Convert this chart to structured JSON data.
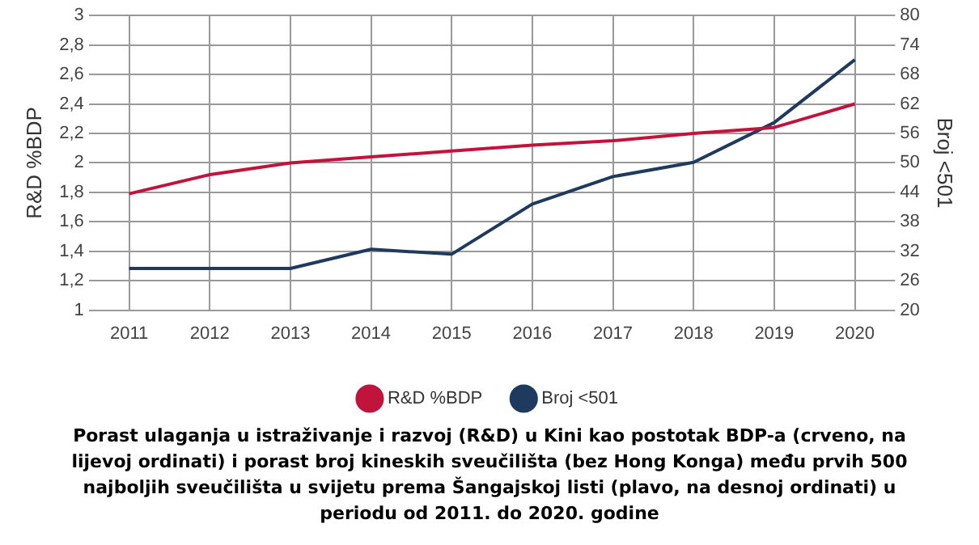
{
  "chart_data": {
    "type": "line",
    "categories": [
      "2011",
      "2012",
      "2013",
      "2014",
      "2015",
      "2016",
      "2017",
      "2018",
      "2019",
      "2020"
    ],
    "series": [
      {
        "name": "R&D %BDP",
        "color": "#c0143c",
        "values": [
          1.79,
          1.92,
          2.0,
          2.04,
          2.08,
          2.12,
          2.15,
          2.2,
          2.24,
          2.4
        ]
      },
      {
        "name": "Broj <501",
        "color": "#1f3a5f",
        "axis": "y2",
        "values": [
          28.5,
          28.5,
          28.5,
          32.4,
          31.4,
          41.6,
          47.2,
          50.1,
          58.2,
          71
        ]
      }
    ],
    "ylabel": "R&D %BDP",
    "y2label": "Broj <501",
    "ylim": [
      1,
      3
    ],
    "yticks": [
      1,
      {
        "value": 1.2,
        "label": "1,2"
      },
      {
        "value": 1.4,
        "label": "1,4"
      },
      {
        "value": 1.6,
        "label": "1,6"
      },
      {
        "value": 1.8,
        "label": "1,8"
      },
      2,
      {
        "value": 2.2,
        "label": "2,2"
      },
      {
        "value": 2.4,
        "label": "2,4"
      },
      {
        "value": 2.6,
        "label": "2,6"
      },
      {
        "value": 2.8,
        "label": "2,8"
      },
      3
    ],
    "y2lim": [
      20,
      80
    ],
    "y2ticks": [
      20,
      26,
      32,
      38,
      44,
      50,
      56,
      62,
      68,
      74,
      80
    ],
    "grid": true,
    "legend": "bottom",
    "marker": "none",
    "line_style": "solid",
    "annotations": [
      "Porast ulaganja u istraživanje i razvoj (R&D) u Kini kao postotak BDP-a (crveno, na lijevoj ordinati) i porast broj kineskih sveučilišta (bez Hong Konga) među prvih 500 najboljih sveučilišta u svijetu prema Šangajskoj listi (plavo, na desnoj ordinati) u periodu od 2011. do 2020. godine"
    ]
  }
}
